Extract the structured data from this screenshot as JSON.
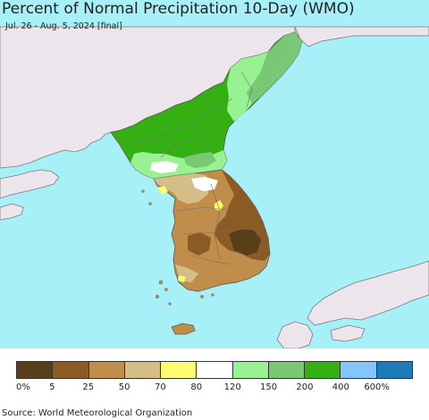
{
  "title": "Percent of Normal Precipitation 10-Day (WMO)",
  "subtitle": "Jul. 26 - Aug. 5, 2024 [final]",
  "source": "Source: World Meteorological Organization",
  "colors": {
    "ocean": "#a8f0f8",
    "land_other": "#ece6ec",
    "border": "#6b6b6b"
  },
  "legend": {
    "colors": [
      "#574019",
      "#8a5b24",
      "#c08e4a",
      "#d4bd86",
      "#fefc70",
      "#ffffff",
      "#98f292",
      "#78c876",
      "#35b013",
      "#82c6fc",
      "#1e7ab8"
    ],
    "labels": [
      "0%",
      "5",
      "25",
      "50",
      "70",
      "80",
      "120",
      "150",
      "200",
      "400",
      "600%"
    ]
  }
}
